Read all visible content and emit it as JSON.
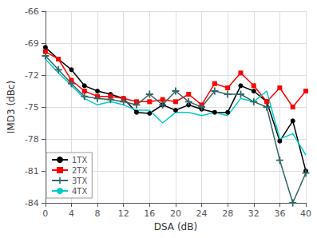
{
  "chart_data": {
    "type": "line",
    "xlabel": "DSA (dB)",
    "ylabel": "IMD3 (dBc)",
    "x": [
      0,
      2,
      4,
      6,
      8,
      10,
      12,
      14,
      16,
      18,
      20,
      22,
      24,
      26,
      28,
      30,
      32,
      34,
      36,
      38,
      40
    ],
    "series": [
      {
        "name": "1TX",
        "color": "#000000",
        "marker": "circle",
        "values": [
          -69.4,
          -70.5,
          -71.5,
          -73.0,
          -73.5,
          -73.8,
          -74.2,
          -75.5,
          -75.6,
          -74.8,
          -75.3,
          -74.8,
          -75.2,
          -75.5,
          -75.5,
          -73.0,
          -73.5,
          -74.5,
          -78.2,
          -76.3,
          -81.0
        ]
      },
      {
        "name": "2TX",
        "color": "#ff0000",
        "marker": "square",
        "values": [
          -69.8,
          -70.5,
          -72.5,
          -73.5,
          -74.0,
          -74.0,
          -74.2,
          -74.5,
          -74.5,
          -74.3,
          -74.5,
          -73.8,
          -74.8,
          -72.8,
          -73.2,
          -71.8,
          -73.0,
          -74.5,
          -73.2,
          -75.0,
          -73.5
        ]
      },
      {
        "name": "3TX",
        "color": "#336666",
        "marker": "plus",
        "values": [
          -70.2,
          -71.5,
          -72.8,
          -74.0,
          -74.2,
          -74.3,
          -74.5,
          -74.8,
          -73.8,
          -74.8,
          -73.5,
          -74.5,
          -75.0,
          -73.5,
          -73.8,
          -73.8,
          -74.5,
          -75.0,
          -80.0,
          -84.0,
          -81.2
        ]
      },
      {
        "name": "4TX",
        "color": "#00cccc",
        "marker": "none",
        "values": [
          -70.5,
          -71.8,
          -73.0,
          -74.2,
          -74.8,
          -74.5,
          -74.8,
          -75.3,
          -75.3,
          -76.5,
          -75.5,
          -75.5,
          -75.8,
          -75.5,
          -75.8,
          -74.2,
          -74.5,
          -73.5,
          -78.0,
          -77.5,
          -79.5
        ]
      }
    ],
    "xlim": [
      0,
      40
    ],
    "ylim": [
      -84,
      -66
    ],
    "xticks": [
      0,
      4,
      8,
      12,
      16,
      20,
      24,
      28,
      32,
      36,
      40
    ],
    "yticks": [
      -84,
      -81,
      -78,
      -75,
      -72,
      -69,
      -66
    ],
    "grid": true,
    "legend": "lower left"
  }
}
